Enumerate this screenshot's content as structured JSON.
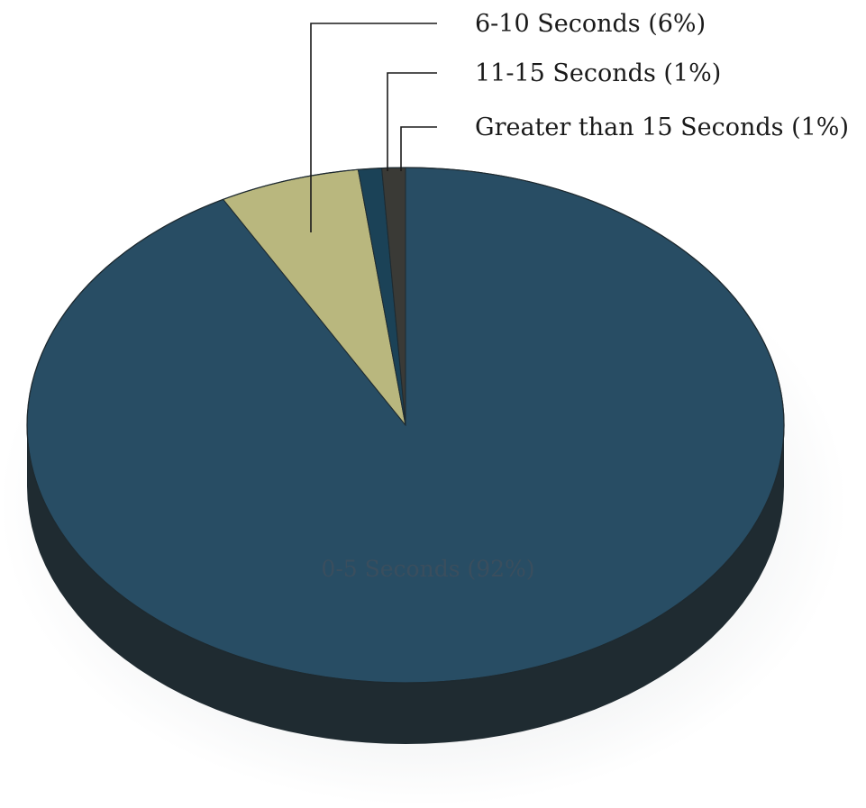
{
  "chart_data": {
    "type": "pie",
    "title": "",
    "slices": [
      {
        "label": "0-5 Seconds (92%)",
        "value": 92,
        "color": "#284d64",
        "side": "#1f2b31",
        "label_position": "inside"
      },
      {
        "label": "6-10 Seconds (6%)",
        "value": 6,
        "color": "#b9b77e",
        "side": "#6d6a45",
        "label_position": "callout"
      },
      {
        "label": "11-15 Seconds (1%)",
        "value": 1,
        "color": "#1b4257",
        "side": "#14252e",
        "label_position": "callout"
      },
      {
        "label": "Greater than 15 Seconds (1%)",
        "value": 1,
        "color": "#3a3a36",
        "side": "#222222",
        "label_position": "callout"
      }
    ]
  }
}
